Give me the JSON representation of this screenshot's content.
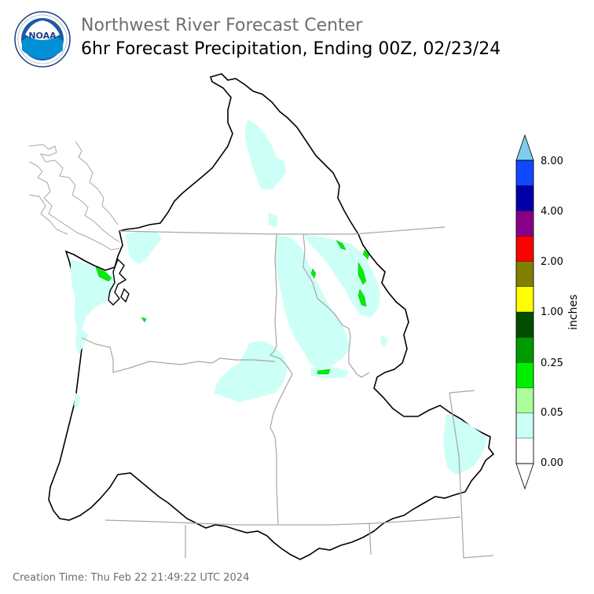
{
  "header": {
    "agency": "Northwest River Forecast Center",
    "product": "6hr Forecast Precipitation, Ending 00Z, 02/23/24"
  },
  "logo": {
    "text": "NOAA",
    "ring_text": "NATIONAL OCEANIC AND ATMOSPHERIC ADMINISTRATION · U.S. DEPARTMENT OF COMMERCE"
  },
  "colorbar": {
    "unit": "inches",
    "tick_labels": [
      "0.00",
      "0.05",
      "0.25",
      "1.00",
      "2.00",
      "4.00",
      "8.00"
    ],
    "colors": [
      "#ffffff",
      "#ccfff5",
      "#aaff99",
      "#00ee00",
      "#009900",
      "#004d00",
      "#ffff00",
      "#808000",
      "#ff0000",
      "#880088",
      "#0000aa",
      "#1048ff",
      "#80ccee"
    ]
  },
  "footer": {
    "creation_time": "Creation Time: Thu Feb 22 21:49:22 UTC 2024"
  }
}
